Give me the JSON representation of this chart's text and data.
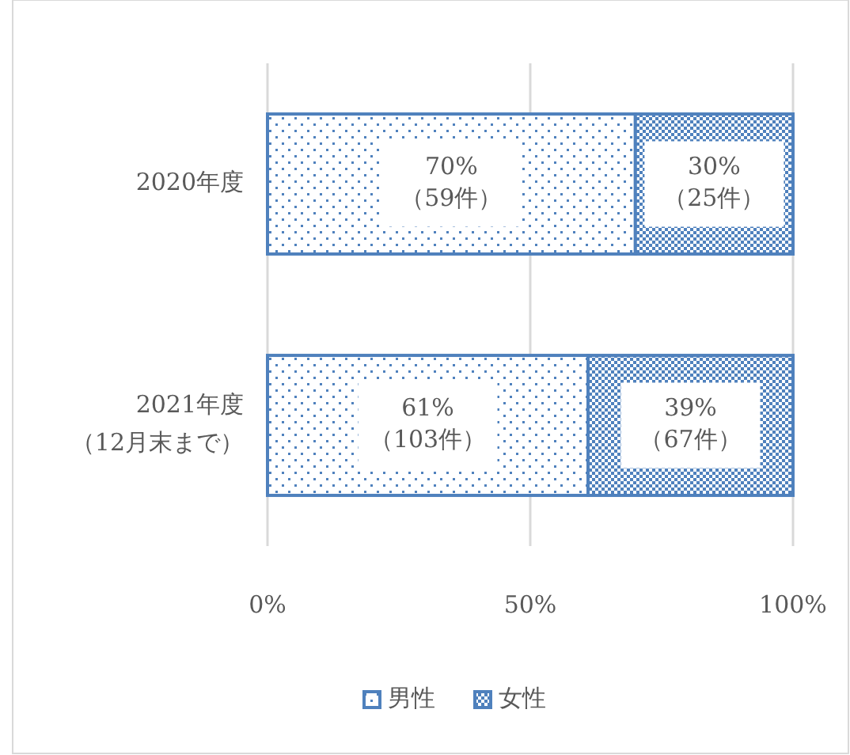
{
  "chart_data": {
    "type": "bar",
    "orientation": "horizontal",
    "stacked": true,
    "categories": [
      "2020年度",
      "2021年度（12月末まで）"
    ],
    "series": [
      {
        "name": "男性",
        "color": "#4f81bd",
        "values": [
          70,
          61
        ],
        "value_labels": [
          "70%（59件）",
          "61%（103件）"
        ]
      },
      {
        "name": "女性",
        "color": "#4f81bd",
        "values": [
          30,
          39
        ],
        "value_labels": [
          "30%（25件）",
          "39%（67件）"
        ]
      }
    ],
    "xlim": [
      0,
      100
    ],
    "xticks": [
      {
        "value": 0,
        "label": "0%"
      },
      {
        "value": 50,
        "label": "50%"
      },
      {
        "value": 100,
        "label": "100%"
      }
    ],
    "grid": "x",
    "legend": "bottom"
  }
}
